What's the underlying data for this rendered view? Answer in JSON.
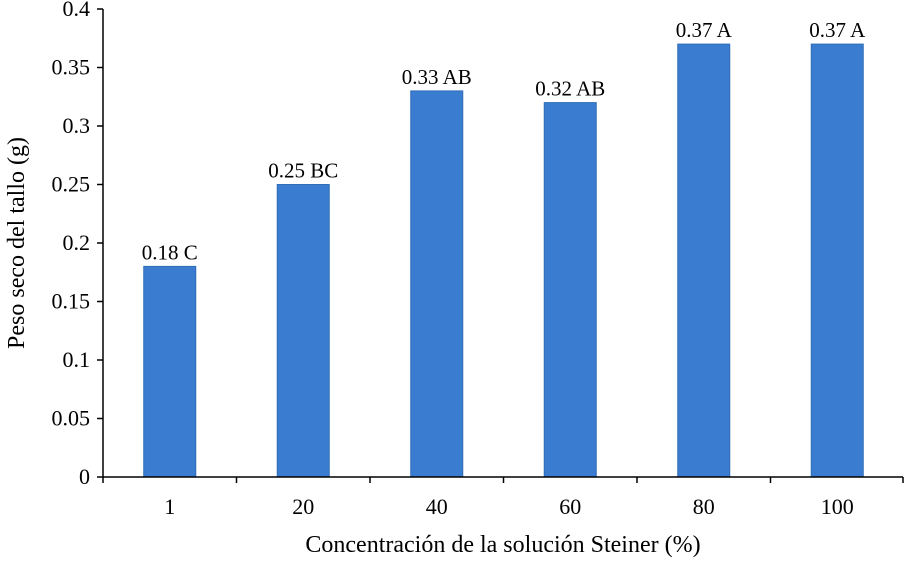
{
  "chart_data": {
    "type": "bar",
    "title": "",
    "xlabel": "Concentración de la solución Steiner (%)",
    "ylabel": "Peso seco del tallo (g)",
    "categories": [
      "1",
      "20",
      "40",
      "60",
      "80",
      "100"
    ],
    "values": [
      0.18,
      0.25,
      0.33,
      0.32,
      0.37,
      0.37
    ],
    "data_labels": [
      "0.18 C",
      "0.25 BC",
      "0.33 AB",
      "0.32 AB",
      "0.37 A",
      "0.37 A"
    ],
    "ylim": [
      0,
      0.4
    ],
    "yticks": [
      0,
      0.05,
      0.1,
      0.15,
      0.2,
      0.25,
      0.3,
      0.35,
      0.4
    ],
    "ytick_labels": [
      "0",
      "0.05",
      "0.1",
      "0.15",
      "0.2",
      "0.25",
      "0.3",
      "0.35",
      "0.4"
    ],
    "grid": false,
    "legend": "none",
    "bar_color": "#3A7DD0",
    "bar_edge_color": "#2F6DB8",
    "axis_color": "#000000"
  }
}
